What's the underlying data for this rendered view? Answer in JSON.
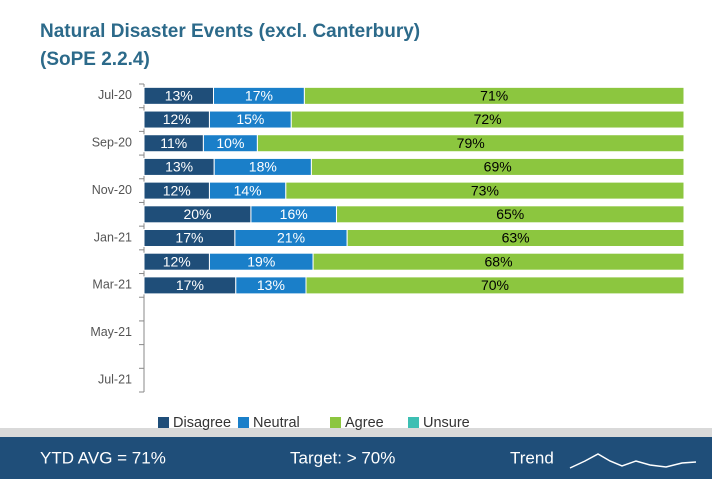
{
  "chart_data": {
    "type": "stacked-barh",
    "title": "Natural Disaster Events (excl. Canterbury)",
    "subtitle": "(SoPE 2.2.4)",
    "categories": [
      "Jul-20",
      null,
      "Sep-20",
      null,
      "Nov-20",
      null,
      "Jan-21",
      null,
      "Mar-21",
      null,
      "May-21",
      null,
      "Jul-21"
    ],
    "series": [
      {
        "name": "Disagree",
        "color": "#1f4e79",
        "label_color": "#ffffff",
        "values": [
          13,
          12,
          11,
          13,
          12,
          20,
          17,
          12,
          17,
          null,
          null,
          null,
          null
        ],
        "value_labels": [
          "13%",
          "12%",
          "11%",
          "13%",
          "12%",
          "20%",
          "17%",
          "12%",
          "17%",
          null,
          null,
          null,
          null
        ]
      },
      {
        "name": "Neutral",
        "color": "#1a7fc9",
        "label_color": "#ffffff",
        "values": [
          17,
          15,
          10,
          18,
          14,
          16,
          21,
          19,
          13,
          null,
          null,
          null,
          null
        ],
        "value_labels": [
          "17%",
          "15%",
          "10%",
          "18%",
          "14%",
          "16%",
          "21%",
          "19%",
          "13%",
          null,
          null,
          null,
          null
        ]
      },
      {
        "name": "Agree",
        "color": "#8cc63f",
        "label_color": "#000000",
        "values": [
          71,
          72,
          79,
          69,
          73,
          65,
          63,
          68,
          70,
          null,
          null,
          null,
          null
        ],
        "value_labels": [
          "71%",
          "72%",
          "79%",
          "69%",
          "73%",
          "65%",
          "63%",
          "68%",
          "70%",
          null,
          null,
          null,
          null
        ]
      },
      {
        "name": "Unsure",
        "color": "#3dbfb3",
        "label_color": "#000000",
        "values": [
          null,
          null,
          null,
          null,
          null,
          null,
          null,
          null,
          null,
          null,
          null,
          null,
          null
        ],
        "value_labels": [
          null,
          null,
          null,
          null,
          null,
          null,
          null,
          null,
          null,
          null,
          null,
          null,
          null
        ]
      }
    ],
    "legend": "bottom",
    "footer": {
      "ytd": "YTD AVG = 71%",
      "target": "Target: > 70%",
      "trend": "Trend"
    }
  }
}
